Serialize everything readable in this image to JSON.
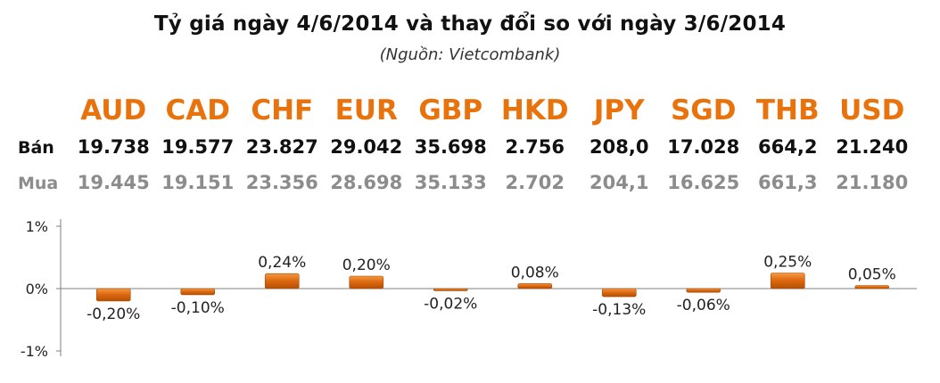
{
  "title": "Tỷ giá ngày 4/6/2014 và thay đổi so với ngày 3/6/2014",
  "subtitle": "(Nguồn: Vietcombank)",
  "row_labels": {
    "sell": "Bán",
    "buy": "Mua"
  },
  "colors": {
    "accent": "#e8730c",
    "bar": "#e06a10",
    "sell_text": "#111111",
    "buy_text": "#8c8c8c"
  },
  "chart_data": {
    "type": "bar",
    "categories": [
      "AUD",
      "CAD",
      "CHF",
      "EUR",
      "GBP",
      "HKD",
      "JPY",
      "SGD",
      "THB",
      "USD"
    ],
    "table": {
      "sell": [
        "19.738",
        "19.577",
        "23.827",
        "29.042",
        "35.698",
        "2.756",
        "208,0",
        "17.028",
        "664,2",
        "21.240"
      ],
      "buy": [
        "19.445",
        "19.151",
        "23.356",
        "28.698",
        "35.133",
        "2.702",
        "204,1",
        "16.625",
        "661,3",
        "21.180"
      ]
    },
    "values": [
      -0.2,
      -0.1,
      0.24,
      0.2,
      -0.02,
      0.08,
      -0.13,
      -0.06,
      0.25,
      0.05
    ],
    "data_labels": [
      "-0,20%",
      "-0,10%",
      "0,24%",
      "0,20%",
      "-0,02%",
      "0,08%",
      "-0,13%",
      "-0,06%",
      "0,25%",
      "0,05%"
    ],
    "yticks": [
      "1%",
      "0%",
      "-1%"
    ],
    "ylim": [
      -1,
      1
    ],
    "grid": false
  }
}
